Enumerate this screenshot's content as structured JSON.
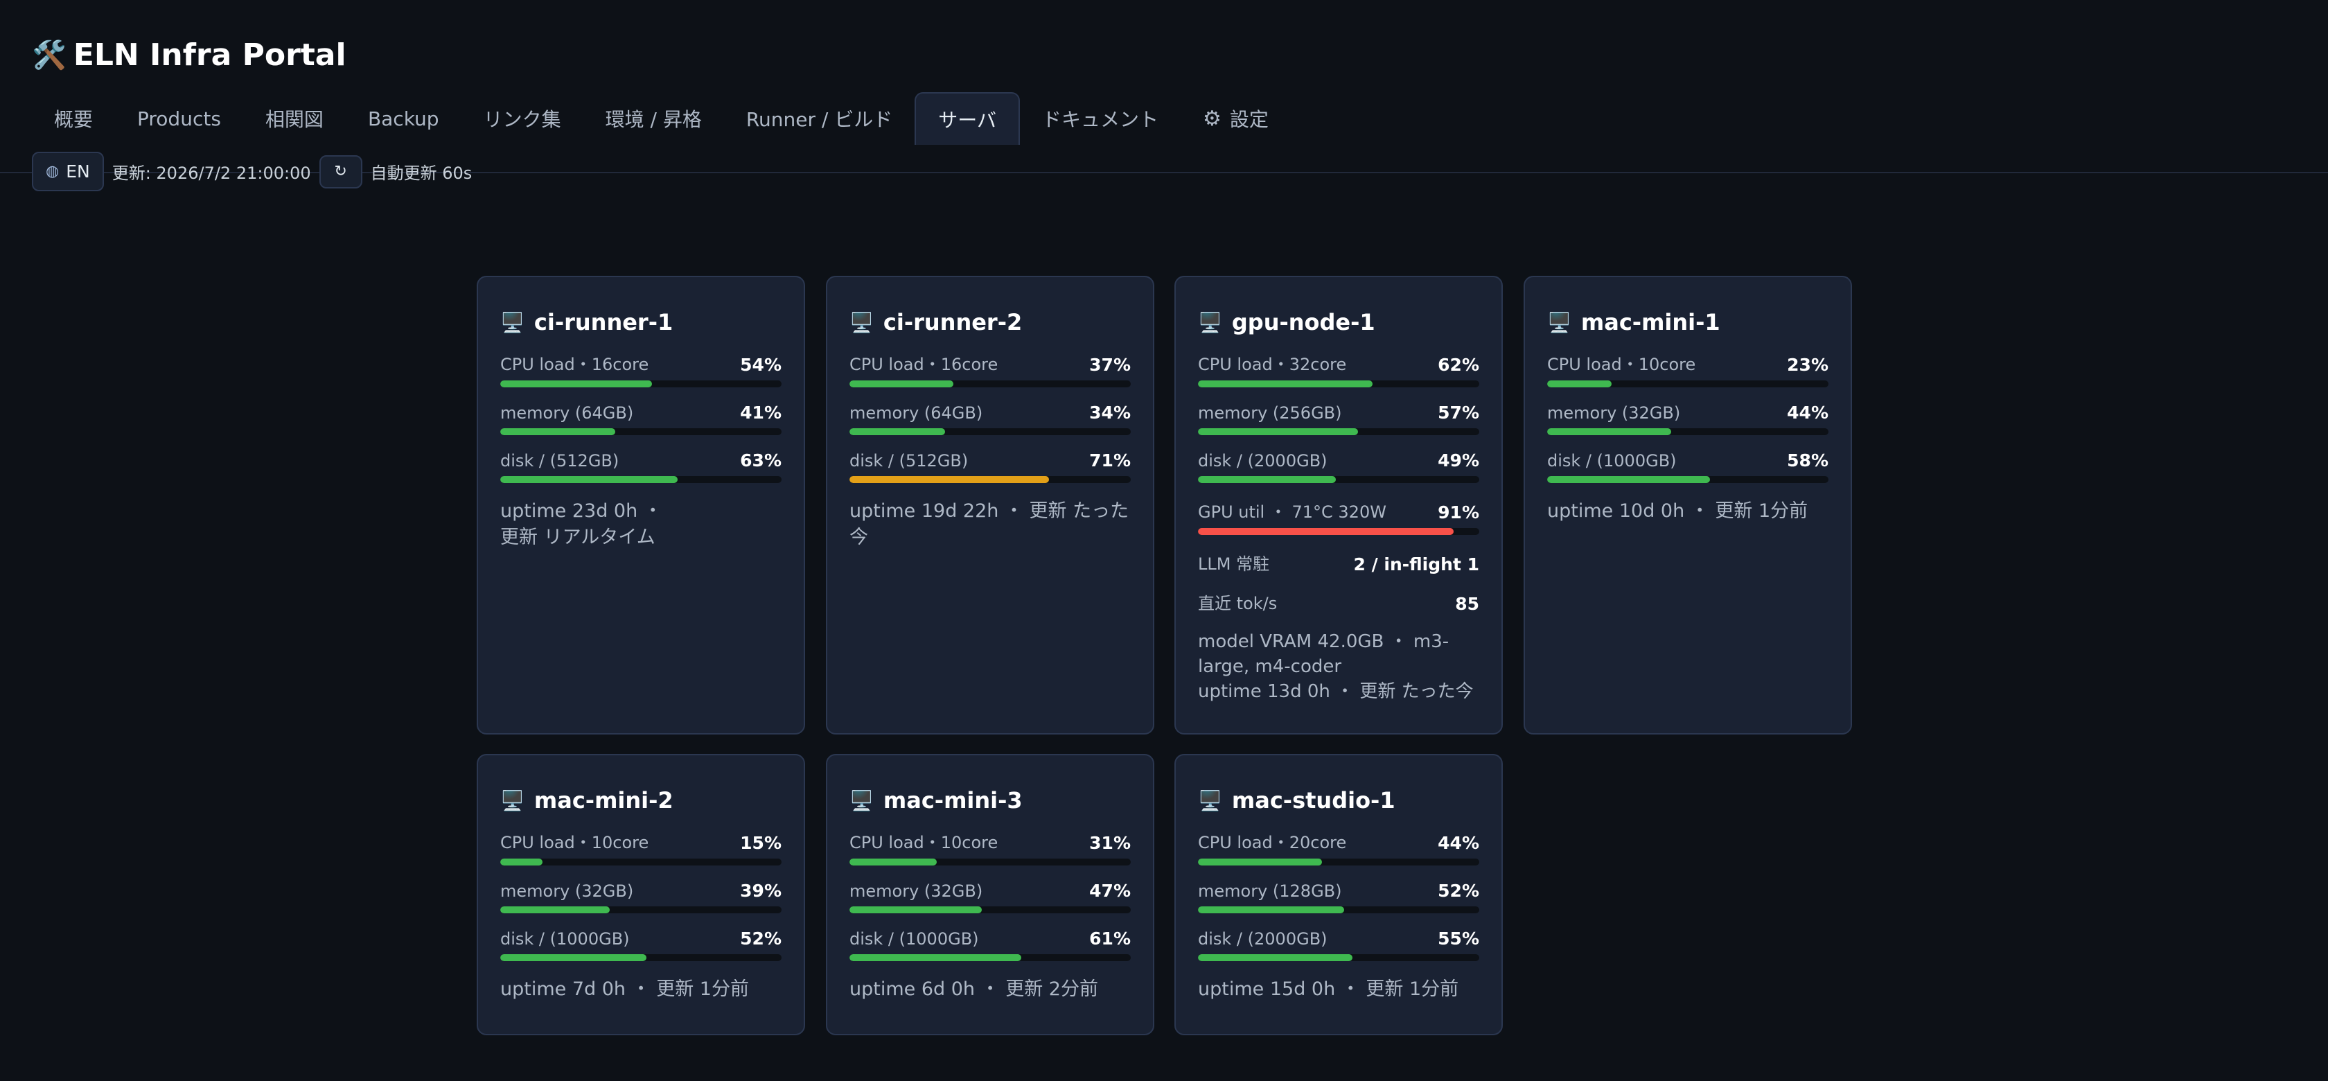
{
  "app": {
    "logo_icon": "🛠️",
    "title": "ELN Infra Portal"
  },
  "tabs": [
    {
      "label": "概要",
      "active": false
    },
    {
      "label": "Products",
      "active": false
    },
    {
      "label": "相関図",
      "active": false
    },
    {
      "label": "Backup",
      "active": false
    },
    {
      "label": "リンク集",
      "active": false
    },
    {
      "label": "環境 / 昇格",
      "active": false
    },
    {
      "label": "Runner / ビルド",
      "active": false
    },
    {
      "label": "サーバ",
      "active": true
    },
    {
      "label": "ドキュメント",
      "active": false
    },
    {
      "label": "設定",
      "active": false,
      "icon": "gear-icon"
    }
  ],
  "toolbar": {
    "lang_label": "EN",
    "lang_icon": "globe-icon",
    "updated_text": "更新: 2026/7/2 21:00:00",
    "refresh_glyph": "↻",
    "auto_refresh_text": "自動更新 60s"
  },
  "colors": {
    "green": "#3fb950",
    "orange": "#e3a018",
    "red": "#f85149",
    "bg": "#0d1117",
    "card": "#1a2233"
  },
  "servers": [
    {
      "name": "ci-runner-1",
      "metrics": [
        {
          "label": "CPU load・16core",
          "value": "54%",
          "pct": 54,
          "color": "green"
        },
        {
          "label": "memory (64GB)",
          "value": "41%",
          "pct": 41,
          "color": "green"
        },
        {
          "label": "disk / (512GB)",
          "value": "63%",
          "pct": 63,
          "color": "green"
        }
      ],
      "meta_lines": [
        "uptime 23d 0h ・",
        "更新 リアルタイム"
      ]
    },
    {
      "name": "ci-runner-2",
      "metrics": [
        {
          "label": "CPU load・16core",
          "value": "37%",
          "pct": 37,
          "color": "green"
        },
        {
          "label": "memory (64GB)",
          "value": "34%",
          "pct": 34,
          "color": "green"
        },
        {
          "label": "disk / (512GB)",
          "value": "71%",
          "pct": 71,
          "color": "orange"
        }
      ],
      "meta_lines": [
        "uptime 19d 22h ・ 更新 たった今"
      ]
    },
    {
      "name": "gpu-node-1",
      "metrics": [
        {
          "label": "CPU load・32core",
          "value": "62%",
          "pct": 62,
          "color": "green"
        },
        {
          "label": "memory (256GB)",
          "value": "57%",
          "pct": 57,
          "color": "green"
        },
        {
          "label": "disk / (2000GB)",
          "value": "49%",
          "pct": 49,
          "color": "green"
        },
        {
          "label": "GPU util ・ 71°C 320W",
          "value": "91%",
          "pct": 91,
          "color": "red"
        }
      ],
      "kvs": [
        {
          "k": "LLM 常駐",
          "v": "2 / in-flight 1"
        },
        {
          "k": "直近 tok/s",
          "v": "85"
        }
      ],
      "meta_lines": [
        "model VRAM 42.0GB ・ m3-",
        "large, m4-coder",
        "uptime 13d 0h ・ 更新 たった今"
      ]
    },
    {
      "name": "mac-mini-1",
      "metrics": [
        {
          "label": "CPU load・10core",
          "value": "23%",
          "pct": 23,
          "color": "green"
        },
        {
          "label": "memory (32GB)",
          "value": "44%",
          "pct": 44,
          "color": "green"
        },
        {
          "label": "disk / (1000GB)",
          "value": "58%",
          "pct": 58,
          "color": "green"
        }
      ],
      "meta_lines": [
        "uptime 10d 0h ・ 更新 1分前"
      ]
    },
    {
      "name": "mac-mini-2",
      "metrics": [
        {
          "label": "CPU load・10core",
          "value": "15%",
          "pct": 15,
          "color": "green"
        },
        {
          "label": "memory (32GB)",
          "value": "39%",
          "pct": 39,
          "color": "green"
        },
        {
          "label": "disk / (1000GB)",
          "value": "52%",
          "pct": 52,
          "color": "green"
        }
      ],
      "meta_lines": [
        "uptime 7d 0h ・ 更新 1分前"
      ]
    },
    {
      "name": "mac-mini-3",
      "metrics": [
        {
          "label": "CPU load・10core",
          "value": "31%",
          "pct": 31,
          "color": "green"
        },
        {
          "label": "memory (32GB)",
          "value": "47%",
          "pct": 47,
          "color": "green"
        },
        {
          "label": "disk / (1000GB)",
          "value": "61%",
          "pct": 61,
          "color": "green"
        }
      ],
      "meta_lines": [
        "uptime 6d 0h ・ 更新 2分前"
      ]
    },
    {
      "name": "mac-studio-1",
      "metrics": [
        {
          "label": "CPU load・20core",
          "value": "44%",
          "pct": 44,
          "color": "green"
        },
        {
          "label": "memory (128GB)",
          "value": "52%",
          "pct": 52,
          "color": "green"
        },
        {
          "label": "disk / (2000GB)",
          "value": "55%",
          "pct": 55,
          "color": "green"
        }
      ],
      "meta_lines": [
        "uptime 15d 0h ・ 更新 1分前"
      ]
    }
  ]
}
